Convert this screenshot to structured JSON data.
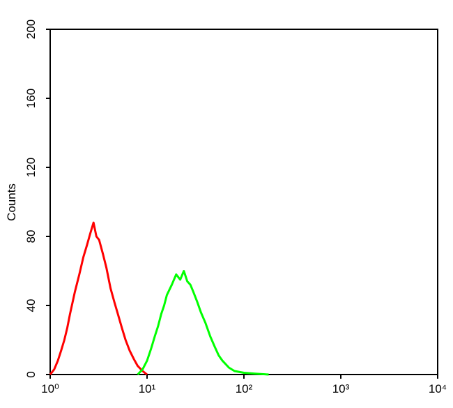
{
  "chart_data": {
    "type": "line",
    "ylabel": "Counts",
    "xscale": "log",
    "xlim": [
      1,
      10000
    ],
    "xticks": [
      {
        "value": 1,
        "label": "10⁰"
      },
      {
        "value": 10,
        "label": "10¹"
      },
      {
        "value": 100,
        "label": "10²"
      },
      {
        "value": 1000,
        "label": "10³"
      },
      {
        "value": 10000,
        "label": "10⁴"
      }
    ],
    "ylim": [
      0,
      200
    ],
    "yticks": [
      0,
      40,
      80,
      120,
      160,
      200
    ],
    "series": [
      {
        "color": "#ff0000",
        "x": [
          1.0,
          1.1,
          1.2,
          1.3,
          1.4,
          1.5,
          1.6,
          1.8,
          2.0,
          2.2,
          2.4,
          2.6,
          2.8,
          3.0,
          3.2,
          3.5,
          3.8,
          4.2,
          4.6,
          5.0,
          5.5,
          6.0,
          6.6,
          7.3,
          8.0,
          9.0,
          10
        ],
        "values": [
          0,
          3,
          8,
          14,
          20,
          27,
          35,
          48,
          58,
          68,
          75,
          82,
          88,
          80,
          78,
          70,
          62,
          50,
          42,
          35,
          27,
          20,
          14,
          9,
          5,
          2,
          0
        ]
      },
      {
        "color": "#00ff00",
        "x": [
          8,
          9,
          10,
          11,
          12,
          13,
          14,
          15,
          16,
          18,
          20,
          22,
          24,
          26,
          28,
          30,
          33,
          36,
          40,
          45,
          50,
          55,
          60,
          70,
          80,
          100,
          130,
          180
        ],
        "values": [
          0,
          3,
          8,
          15,
          22,
          28,
          35,
          40,
          46,
          52,
          58,
          55,
          60,
          54,
          52,
          48,
          42,
          36,
          30,
          22,
          16,
          11,
          8,
          4,
          2,
          1,
          0.5,
          0
        ]
      }
    ]
  }
}
